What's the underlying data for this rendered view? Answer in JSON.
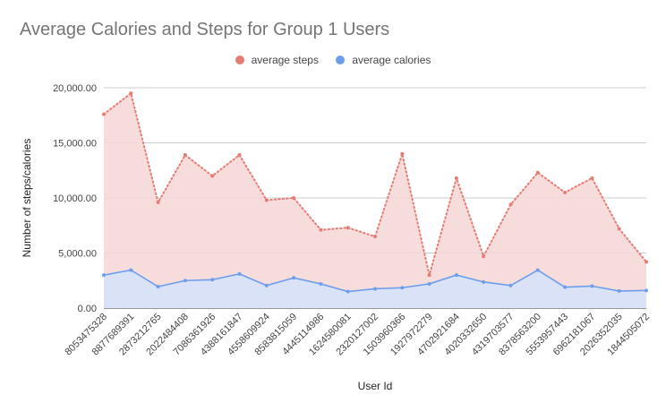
{
  "chart_data": {
    "type": "area",
    "title": "Average Calories and Steps for Group 1 Users",
    "xlabel": "User Id",
    "ylabel": "Number of steps/calories",
    "ylim": [
      0,
      20000
    ],
    "yticks": [
      "0.00",
      "5,000.00",
      "10,000.00",
      "15,000.00",
      "20,000.00"
    ],
    "grid": true,
    "legend_position": "top",
    "categories": [
      "8053475328",
      "8877689391",
      "2873212765",
      "2022484408",
      "7086361926",
      "4388161847",
      "4558609924",
      "8583815059",
      "4445114986",
      "1624580081",
      "2320127002",
      "1503960366",
      "1927972279",
      "4702921684",
      "4020332650",
      "4319703577",
      "8378563200",
      "5553957443",
      "6962181067",
      "2026352035",
      "1844505072"
    ],
    "series": [
      {
        "name": "average steps",
        "color": "#e67c73",
        "fill": "#f6d8d8",
        "style": "dotted",
        "values": [
          17600,
          19500,
          9600,
          13900,
          12000,
          13900,
          9800,
          10000,
          7100,
          7300,
          6500,
          14000,
          3000,
          11800,
          4700,
          9400,
          12300,
          10500,
          11800,
          7200,
          4200
        ]
      },
      {
        "name": "average calories",
        "color": "#6d9eeb",
        "fill": "#d5e2fa",
        "style": "solid",
        "values": [
          3000,
          3450,
          1950,
          2500,
          2580,
          3100,
          2050,
          2750,
          2200,
          1500,
          1750,
          1850,
          2200,
          3000,
          2370,
          2050,
          3450,
          1900,
          2000,
          1550,
          1600
        ]
      }
    ]
  }
}
